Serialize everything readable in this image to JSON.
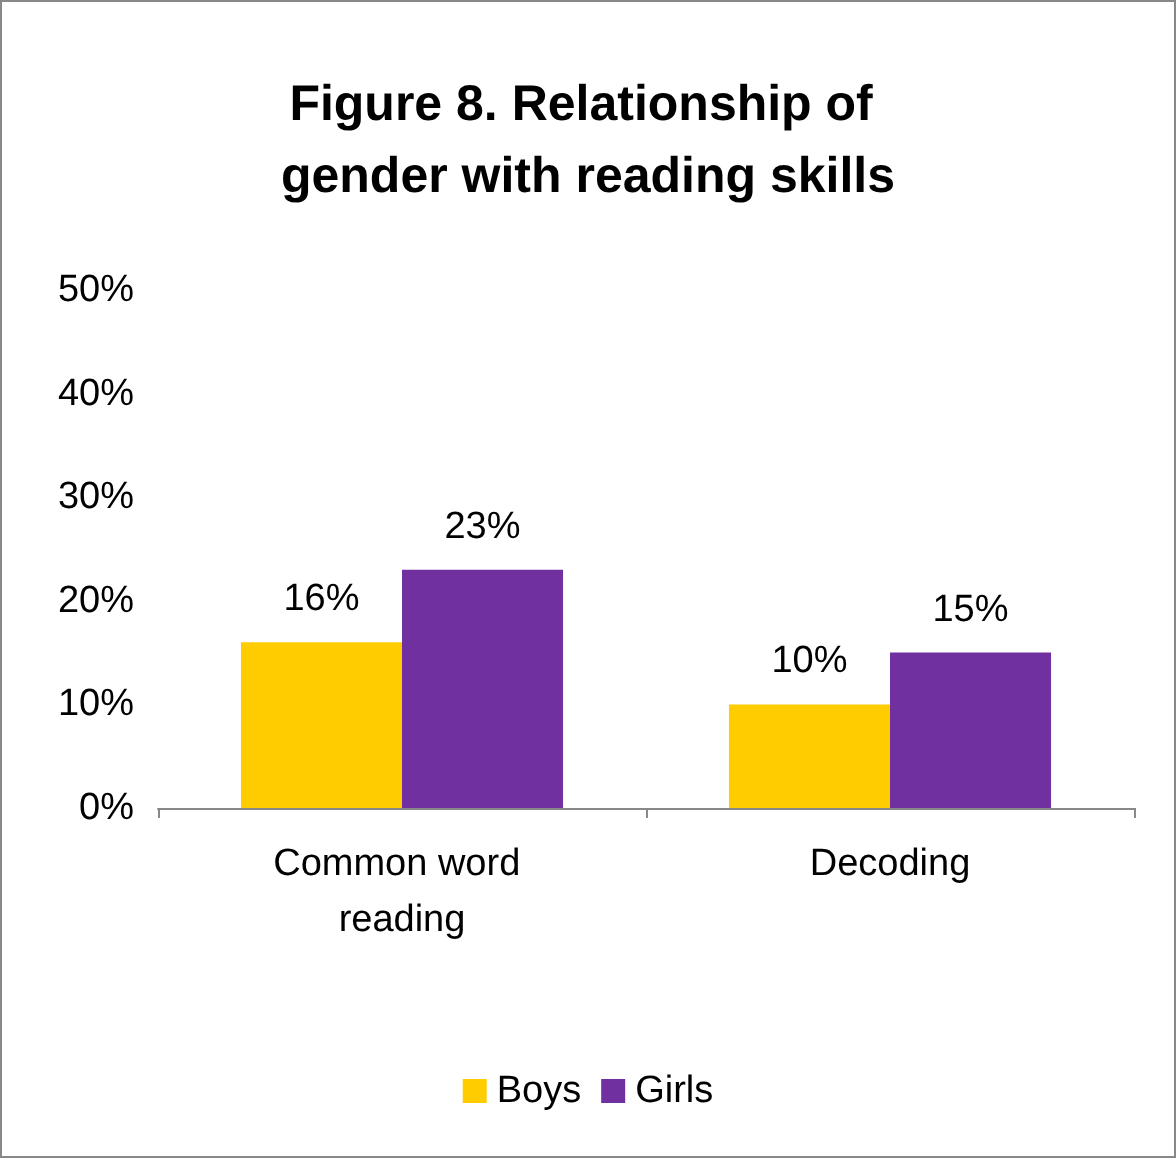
{
  "chart_data": {
    "type": "bar",
    "title": "Figure 8. Relationship of gender with reading skills",
    "categories": [
      "Common word reading",
      "Decoding"
    ],
    "series": [
      {
        "name": "Boys",
        "color": "#ffcc00",
        "values": [
          16,
          10
        ],
        "value_labels": [
          "16%",
          "10%"
        ]
      },
      {
        "name": "Girls",
        "color": "#7030a0",
        "values": [
          23,
          15
        ],
        "value_labels": [
          "23%",
          "15%"
        ]
      }
    ],
    "ylim": [
      0,
      50
    ],
    "yticks": [
      {
        "value": 0,
        "label": "0%"
      },
      {
        "value": 10,
        "label": "10%"
      },
      {
        "value": 20,
        "label": "20%"
      },
      {
        "value": 30,
        "label": "30%"
      },
      {
        "value": 40,
        "label": "40%"
      },
      {
        "value": 50,
        "label": "50%"
      }
    ],
    "grid": false,
    "legend": "bottom"
  }
}
